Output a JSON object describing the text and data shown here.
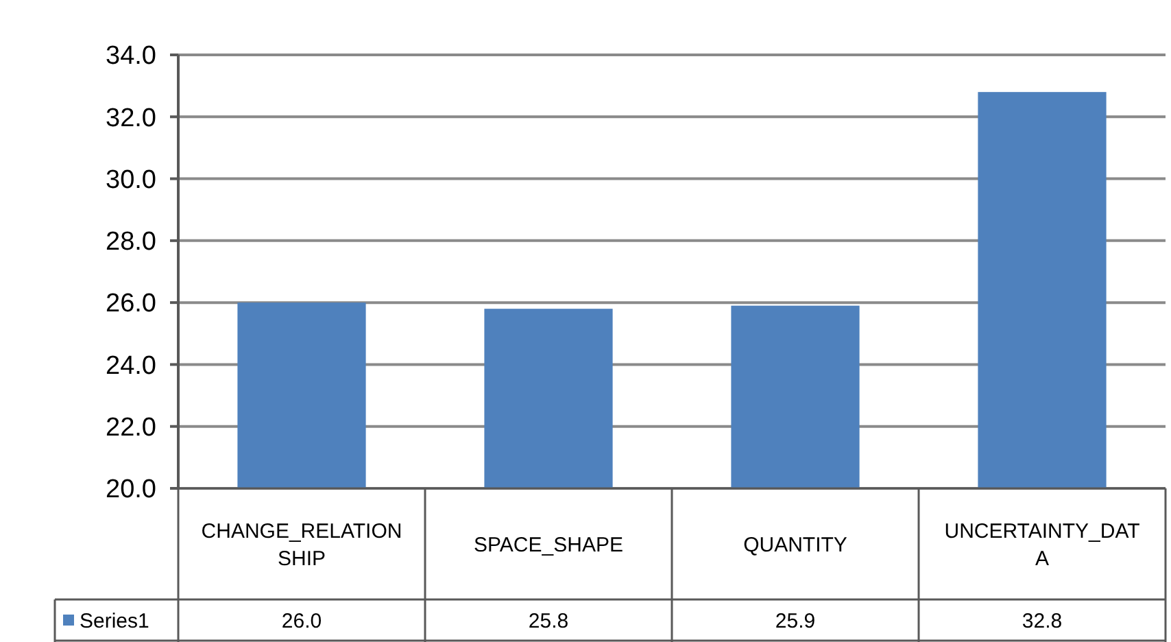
{
  "chart_data": {
    "type": "bar",
    "categories": [
      "CHANGE_RELATIONSHIP",
      "SPACE_SHAPE",
      "QUANTITY",
      "UNCERTAINTY_DATA"
    ],
    "series": [
      {
        "name": "Series1",
        "color": "#4f81bd",
        "values": [
          26.0,
          25.8,
          25.9,
          32.8
        ],
        "value_labels": [
          "26.0",
          "25.8",
          "25.9",
          "32.8"
        ]
      }
    ],
    "ylim": [
      20,
      34
    ],
    "yticks": [
      {
        "value": 20,
        "label": "20.0"
      },
      {
        "value": 22,
        "label": "22.0"
      },
      {
        "value": 24,
        "label": "24.0"
      },
      {
        "value": 26,
        "label": "26.0"
      },
      {
        "value": 28,
        "label": "28.0"
      },
      {
        "value": 30,
        "label": "30.0"
      },
      {
        "value": 32,
        "label": "32.0"
      },
      {
        "value": 34,
        "label": "34.0"
      }
    ],
    "grid": "y",
    "legend": "bottom"
  }
}
